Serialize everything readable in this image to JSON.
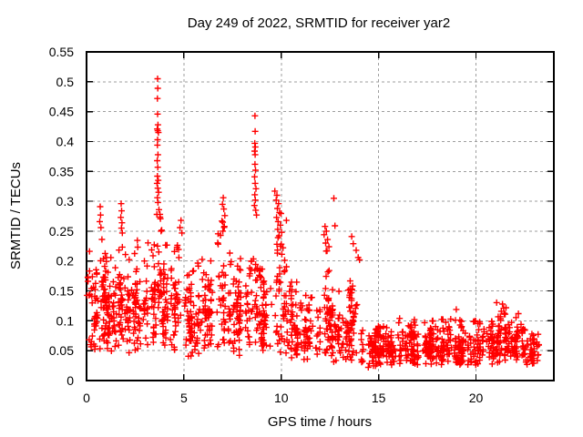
{
  "page": {
    "background": "#ffffff"
  },
  "chart_data": {
    "type": "scatter",
    "title": "Day 249 of 2022, SRMTID for receiver yar2",
    "xlabel": "GPS time / hours",
    "ylabel": "SRMTID / TECUs",
    "xlim": [
      0,
      24
    ],
    "ylim": [
      0,
      0.55
    ],
    "xticks": [
      0,
      5,
      10,
      15,
      20
    ],
    "xtick_labels": [
      "0",
      "5",
      "10",
      "15",
      "20"
    ],
    "yticks": [
      0,
      0.05,
      0.1,
      0.15,
      0.2,
      0.25,
      0.3,
      0.35,
      0.4,
      0.45,
      0.5,
      0.55
    ],
    "ytick_labels": [
      "0",
      "0.05",
      "0.1",
      "0.15",
      "0.2",
      "0.25",
      "0.3",
      "0.35",
      "0.4",
      "0.45",
      "0.5",
      "0.55"
    ],
    "grid": true,
    "legend_position": "none",
    "series_name": "SRMTID",
    "x_data_end": 23.2,
    "marker": {
      "shape": "plus",
      "color": "#ff0000",
      "size": 7,
      "stroke_width": 1.4
    },
    "colors": {
      "grid": "#9e9e9e",
      "border": "#000000",
      "text": "#000000",
      "background": "#ffffff"
    },
    "notable_points": [
      [
        3.65,
        0.505
      ],
      [
        3.66,
        0.489
      ],
      [
        3.64,
        0.472
      ],
      [
        3.65,
        0.446
      ],
      [
        3.67,
        0.428
      ],
      [
        3.63,
        0.421
      ],
      [
        3.66,
        0.418
      ],
      [
        3.69,
        0.415
      ],
      [
        3.65,
        0.403
      ],
      [
        3.64,
        0.394
      ],
      [
        3.67,
        0.378
      ],
      [
        3.63,
        0.368
      ],
      [
        3.66,
        0.357
      ],
      [
        3.64,
        0.342
      ],
      [
        3.68,
        0.335
      ],
      [
        3.62,
        0.33
      ],
      [
        3.66,
        0.322
      ],
      [
        3.7,
        0.315
      ],
      [
        3.64,
        0.306
      ],
      [
        3.67,
        0.298
      ],
      [
        3.72,
        0.286
      ],
      [
        3.61,
        0.278
      ],
      [
        8.65,
        0.443
      ],
      [
        8.66,
        0.417
      ],
      [
        8.64,
        0.397
      ],
      [
        8.67,
        0.391
      ],
      [
        8.63,
        0.384
      ],
      [
        8.66,
        0.378
      ],
      [
        8.65,
        0.362
      ],
      [
        8.68,
        0.352
      ],
      [
        8.63,
        0.341
      ],
      [
        8.66,
        0.33
      ],
      [
        8.7,
        0.321
      ],
      [
        8.64,
        0.311
      ],
      [
        8.67,
        0.302
      ],
      [
        8.62,
        0.293
      ],
      [
        8.69,
        0.285
      ],
      [
        8.73,
        0.277
      ],
      [
        9.67,
        0.317
      ],
      [
        9.78,
        0.31
      ],
      [
        9.74,
        0.302
      ],
      [
        9.86,
        0.296
      ],
      [
        9.8,
        0.288
      ],
      [
        9.91,
        0.281
      ],
      [
        9.76,
        0.273
      ],
      [
        9.84,
        0.266
      ],
      [
        9.95,
        0.26
      ],
      [
        9.82,
        0.253
      ],
      [
        10.02,
        0.248
      ],
      [
        0.7,
        0.291
      ],
      [
        0.72,
        0.277
      ],
      [
        0.68,
        0.266
      ],
      [
        0.74,
        0.256
      ],
      [
        1.78,
        0.296
      ],
      [
        1.8,
        0.284
      ],
      [
        1.76,
        0.273
      ],
      [
        1.82,
        0.264
      ],
      [
        1.79,
        0.255
      ],
      [
        1.84,
        0.247
      ],
      [
        7.02,
        0.306
      ],
      [
        6.98,
        0.295
      ],
      [
        7.05,
        0.287
      ],
      [
        7.1,
        0.276
      ],
      [
        6.95,
        0.267
      ],
      [
        7.08,
        0.258
      ],
      [
        7.0,
        0.25
      ],
      [
        6.88,
        0.243
      ],
      [
        4.85,
        0.268
      ],
      [
        4.8,
        0.256
      ],
      [
        4.9,
        0.247
      ],
      [
        12.25,
        0.258
      ],
      [
        12.32,
        0.25
      ],
      [
        12.2,
        0.244
      ],
      [
        12.38,
        0.236
      ],
      [
        12.28,
        0.23
      ],
      [
        12.45,
        0.224
      ],
      [
        12.35,
        0.217
      ],
      [
        12.7,
        0.305
      ],
      [
        12.76,
        0.259
      ],
      [
        13.62,
        0.241
      ],
      [
        13.7,
        0.229
      ],
      [
        13.85,
        0.218
      ],
      [
        13.95,
        0.206
      ],
      [
        14.02,
        0.202
      ],
      [
        21.36,
        0.128
      ],
      [
        21.42,
        0.121
      ],
      [
        21.3,
        0.116
      ],
      [
        21.5,
        0.111
      ],
      [
        21.25,
        0.107
      ]
    ],
    "background_envelope": {
      "seed": 20220249,
      "comment": "segments of the dense noise band: [x_start, x_end, n_points, y_min, y_max]",
      "segments": [
        [
          0.0,
          0.5,
          40,
          0.05,
          0.23
        ],
        [
          0.5,
          1.0,
          45,
          0.05,
          0.26
        ],
        [
          1.0,
          1.6,
          50,
          0.04,
          0.22
        ],
        [
          1.6,
          2.1,
          45,
          0.05,
          0.27
        ],
        [
          2.1,
          3.0,
          70,
          0.04,
          0.25
        ],
        [
          3.0,
          3.6,
          45,
          0.05,
          0.27
        ],
        [
          3.6,
          3.85,
          22,
          0.07,
          0.31
        ],
        [
          3.85,
          5.0,
          85,
          0.04,
          0.26
        ],
        [
          5.0,
          6.0,
          72,
          0.04,
          0.22
        ],
        [
          6.0,
          6.7,
          50,
          0.05,
          0.24
        ],
        [
          6.7,
          7.4,
          52,
          0.05,
          0.3
        ],
        [
          7.4,
          8.4,
          70,
          0.04,
          0.24
        ],
        [
          8.4,
          9.0,
          45,
          0.05,
          0.28
        ],
        [
          9.0,
          9.6,
          42,
          0.04,
          0.24
        ],
        [
          9.6,
          10.3,
          50,
          0.04,
          0.3
        ],
        [
          10.3,
          11.2,
          60,
          0.035,
          0.2
        ],
        [
          11.2,
          12.0,
          55,
          0.03,
          0.16
        ],
        [
          12.0,
          12.6,
          40,
          0.04,
          0.25
        ],
        [
          12.6,
          13.4,
          55,
          0.03,
          0.16
        ],
        [
          13.4,
          14.1,
          48,
          0.03,
          0.21
        ],
        [
          14.1,
          15.0,
          65,
          0.02,
          0.1
        ],
        [
          15.0,
          16.0,
          70,
          0.025,
          0.1
        ],
        [
          16.0,
          17.0,
          70,
          0.025,
          0.12
        ],
        [
          17.0,
          18.0,
          70,
          0.025,
          0.11
        ],
        [
          18.0,
          19.0,
          72,
          0.025,
          0.12
        ],
        [
          19.0,
          20.0,
          75,
          0.025,
          0.11
        ],
        [
          20.0,
          21.0,
          65,
          0.025,
          0.12
        ],
        [
          21.0,
          21.8,
          60,
          0.03,
          0.135
        ],
        [
          21.8,
          22.6,
          58,
          0.03,
          0.115
        ],
        [
          22.6,
          23.2,
          42,
          0.025,
          0.09
        ]
      ]
    }
  }
}
